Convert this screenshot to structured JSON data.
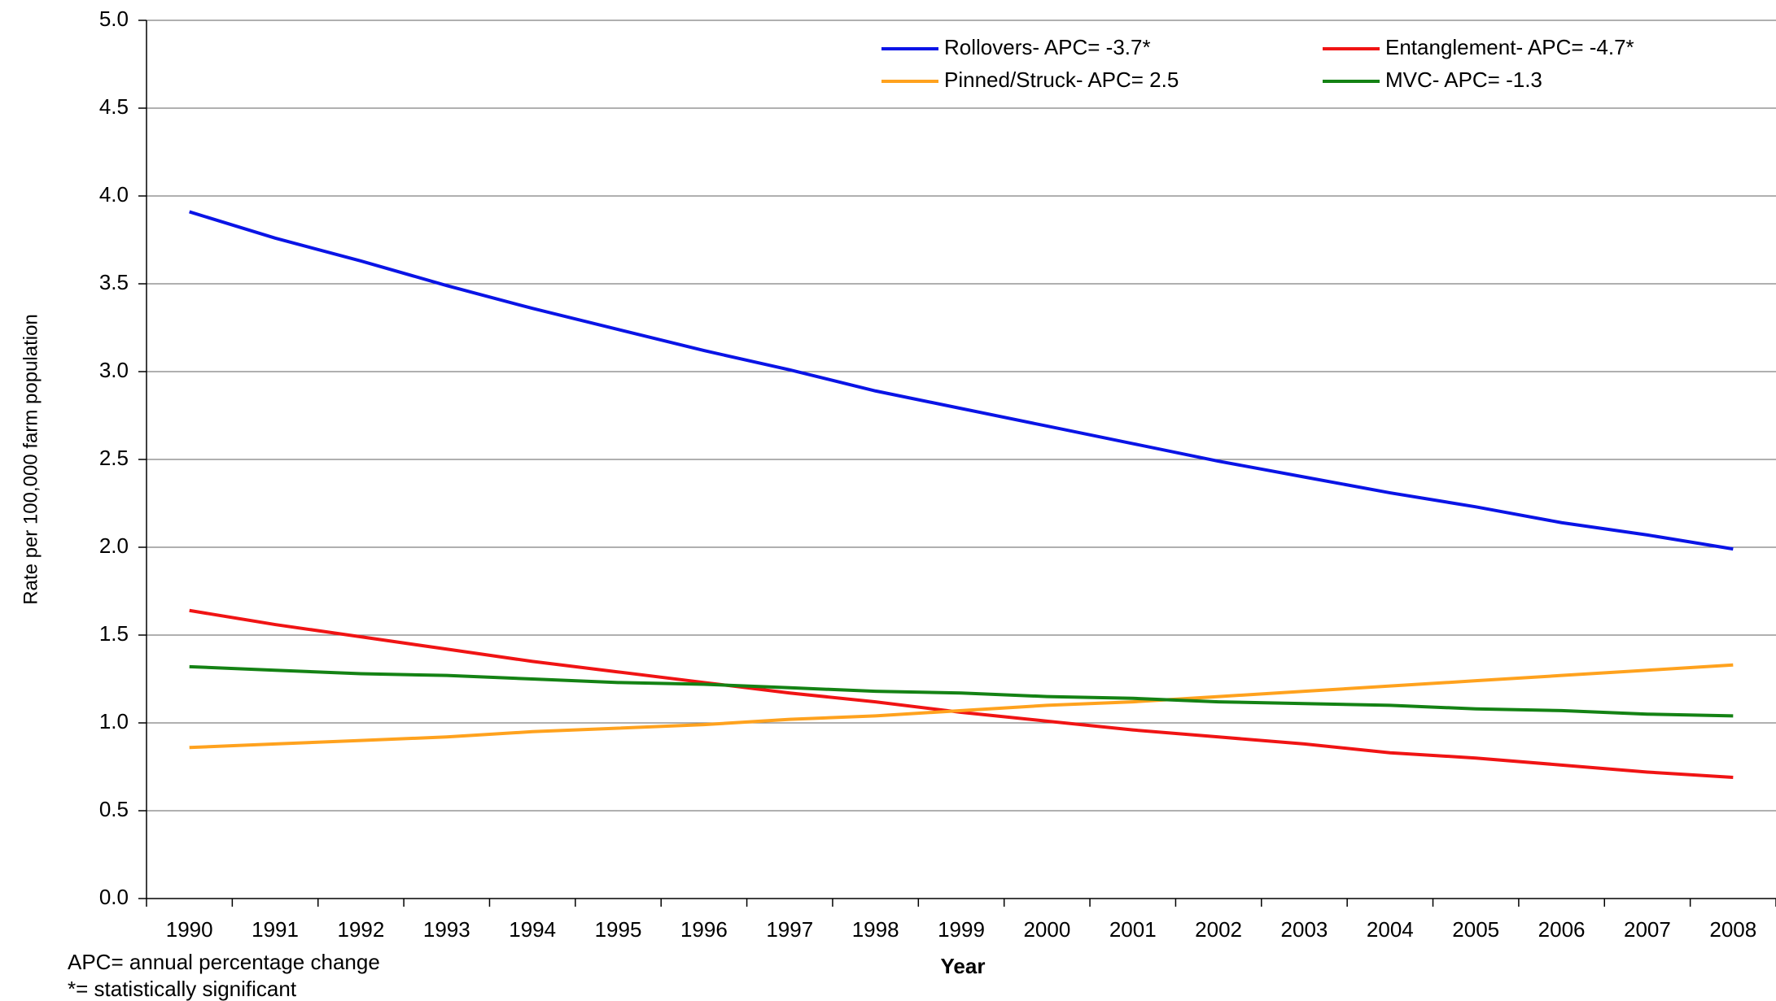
{
  "chart_data": {
    "type": "line",
    "y_label": "Rate per 100,000 farm population",
    "x_label": "Year",
    "notes": [
      "APC= annual percentage change",
      "*= statistically significant"
    ],
    "categories": [
      "1990",
      "1991",
      "1992",
      "1993",
      "1994",
      "1995",
      "1996",
      "1997",
      "1998",
      "1999",
      "2000",
      "2001",
      "2002",
      "2003",
      "2004",
      "2005",
      "2006",
      "2007",
      "2008"
    ],
    "series": [
      {
        "name": "Rollovers- APC= -3.7*",
        "color": "#0a14e6",
        "values": [
          3.91,
          3.76,
          3.63,
          3.49,
          3.36,
          3.24,
          3.12,
          3.01,
          2.89,
          2.79,
          2.69,
          2.59,
          2.49,
          2.4,
          2.31,
          2.23,
          2.14,
          2.07,
          1.99
        ]
      },
      {
        "name": "Entanglement- APC= -4.7*",
        "color": "#f01414",
        "values": [
          1.64,
          1.56,
          1.49,
          1.42,
          1.35,
          1.29,
          1.23,
          1.17,
          1.12,
          1.06,
          1.01,
          0.96,
          0.92,
          0.88,
          0.83,
          0.8,
          0.76,
          0.72,
          0.69
        ]
      },
      {
        "name": "Pinned/Struck- APC= 2.5",
        "color": "#ffa21e",
        "values": [
          0.86,
          0.88,
          0.9,
          0.92,
          0.95,
          0.97,
          0.99,
          1.02,
          1.04,
          1.07,
          1.1,
          1.12,
          1.15,
          1.18,
          1.21,
          1.24,
          1.27,
          1.3,
          1.33
        ]
      },
      {
        "name": "MVC- APC= -1.3",
        "color": "#148214",
        "values": [
          1.32,
          1.3,
          1.28,
          1.27,
          1.25,
          1.23,
          1.22,
          1.2,
          1.18,
          1.17,
          1.15,
          1.14,
          1.12,
          1.11,
          1.1,
          1.08,
          1.07,
          1.05,
          1.04
        ]
      }
    ],
    "ylim": [
      0,
      5
    ],
    "yticks": [
      {
        "value": 0,
        "label": "0.0"
      },
      0.5,
      {
        "value": 1,
        "label": "1.0"
      },
      1.5,
      {
        "value": 2,
        "label": "2.0"
      },
      2.5,
      {
        "value": 3,
        "label": "3.0"
      },
      3.5,
      {
        "value": 4,
        "label": "4.0"
      },
      4.5,
      {
        "value": 5,
        "label": "5.0"
      }
    ],
    "grid": true,
    "legend": "top-right"
  }
}
